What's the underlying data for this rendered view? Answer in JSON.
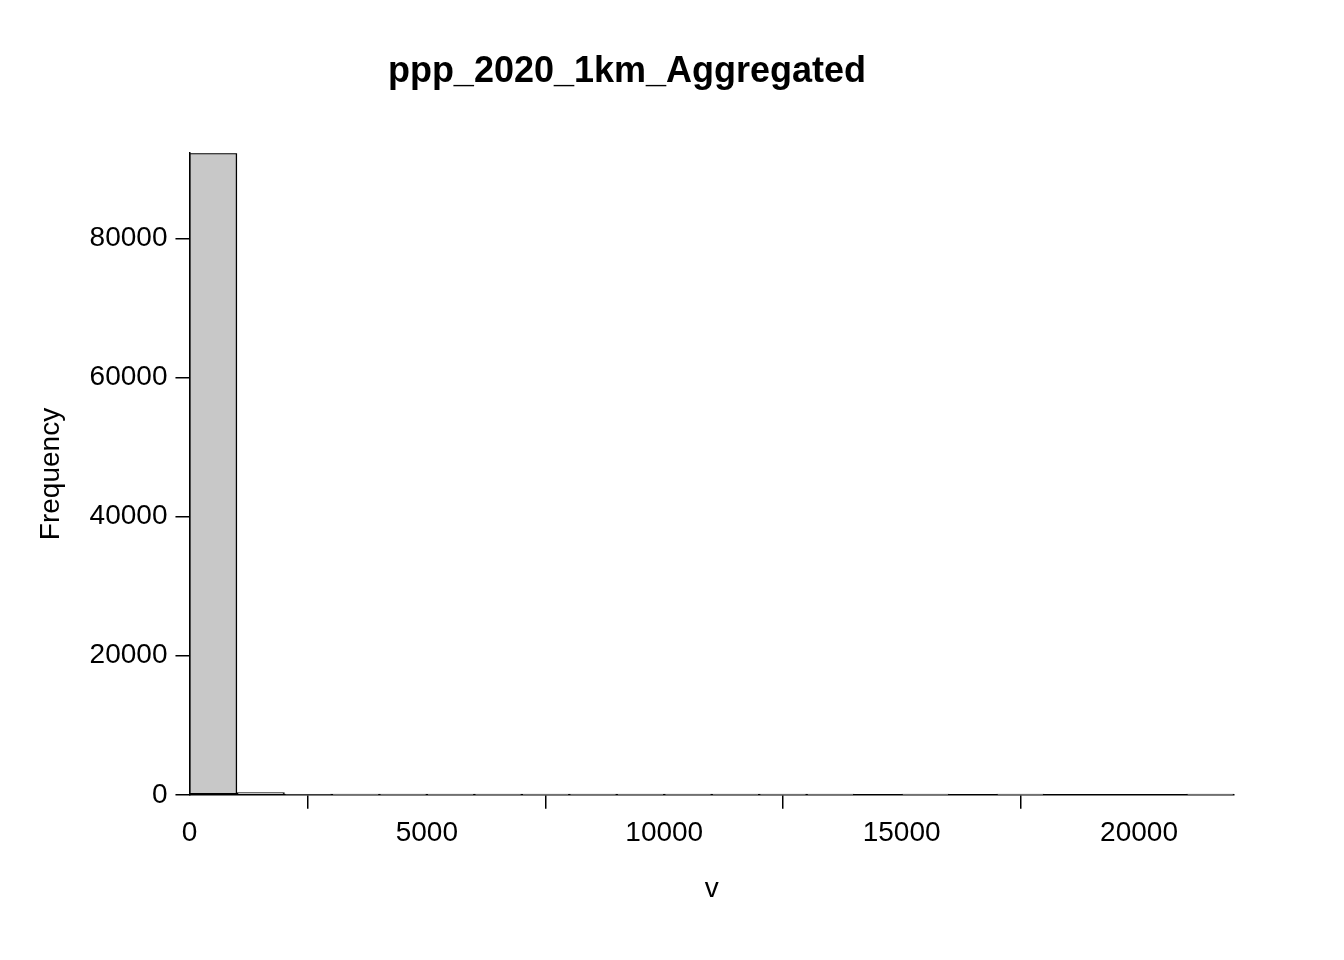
{
  "chart_data": {
    "type": "histogram",
    "title": "ppp_2020_1km_Aggregated",
    "x_label": "v",
    "y_label": "Frequency",
    "bins": [
      0,
      1000,
      2000,
      3000,
      4000,
      5000,
      6000,
      7000,
      8000,
      9000,
      10000,
      11000,
      12000,
      13000,
      14000,
      15000,
      16000,
      17000,
      18000,
      19000,
      20000,
      21000,
      22000
    ],
    "counts": [
      92300,
      310,
      70,
      28,
      15,
      9,
      6,
      4,
      3,
      2,
      2,
      1,
      1,
      1,
      0,
      1,
      0,
      1,
      0,
      0,
      0,
      1
    ],
    "color": "#c8c8c8",
    "xlim": [
      0,
      22000
    ],
    "ylim": [
      0,
      92300
    ],
    "xticks": [
      0,
      5000,
      10000,
      15000,
      20000
    ],
    "yticks": [
      0,
      20000,
      40000,
      60000,
      80000
    ],
    "grid": false
  }
}
